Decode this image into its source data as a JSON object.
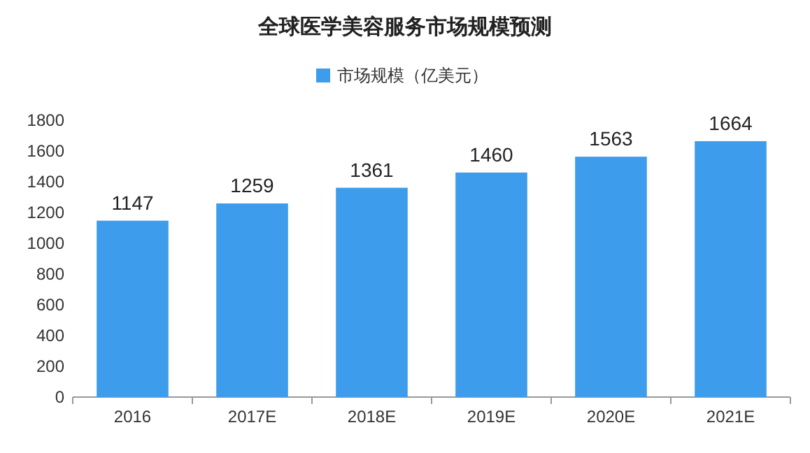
{
  "chart_data": {
    "type": "bar",
    "title": "全球医学美容服务市场规模预测",
    "categories": [
      "2016",
      "2017E",
      "2018E",
      "2019E",
      "2020E",
      "2021E"
    ],
    "series": [
      {
        "name": "市场规模（亿美元）",
        "color": "#3d9cec",
        "values": [
          1147,
          1259,
          1361,
          1460,
          1563,
          1664
        ]
      }
    ],
    "ylim": [
      0,
      1800
    ],
    "yticks": [
      0,
      200,
      400,
      600,
      800,
      1000,
      1200,
      1400,
      1600,
      1800
    ],
    "data_labels": true,
    "legend": "top"
  }
}
